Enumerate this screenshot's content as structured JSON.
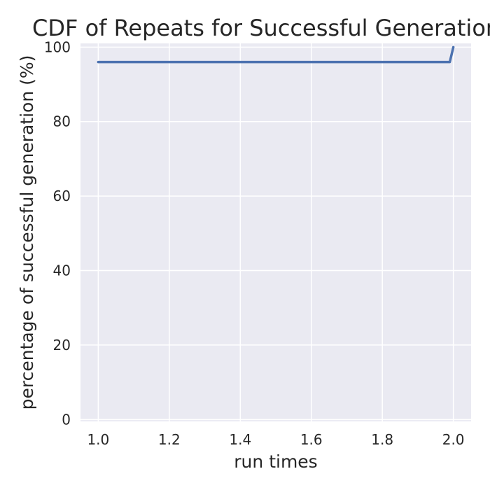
{
  "chart_data": {
    "type": "line",
    "title": "CDF of Repeats for Successful Generation",
    "xlabel": "run times",
    "ylabel": "percentage of successful generation (%)",
    "xlim": [
      0.95,
      2.05
    ],
    "ylim": [
      -0.5,
      101
    ],
    "xticks": [
      1.0,
      1.2,
      1.4,
      1.6,
      1.8,
      2.0
    ],
    "xtick_labels": [
      "1.0",
      "1.2",
      "1.4",
      "1.6",
      "1.8",
      "2.0"
    ],
    "yticks": [
      0,
      20,
      40,
      60,
      80,
      100
    ],
    "ytick_labels": [
      "0",
      "20",
      "40",
      "60",
      "80",
      "100"
    ],
    "grid": true,
    "background": "#eaeaf2",
    "grid_color": "#ffffff",
    "series": [
      {
        "color": "#4c72b0",
        "x": [
          1.0,
          1.99,
          2.0
        ],
        "y": [
          96,
          96,
          100
        ]
      }
    ]
  }
}
